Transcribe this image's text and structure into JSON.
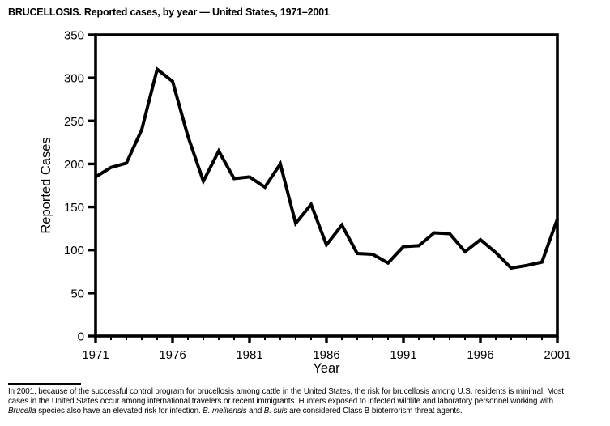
{
  "title": "BRUCELLOSIS. Reported cases, by year — United States, 1971–2001",
  "chart_data": {
    "type": "line",
    "title": "BRUCELLOSIS. Reported cases, by year — United States, 1971–2001",
    "xlabel": "Year",
    "ylabel": "Reported Cases",
    "xlim": [
      1971,
      2001
    ],
    "ylim": [
      0,
      350
    ],
    "yticks": [
      0,
      50,
      100,
      150,
      200,
      250,
      300,
      350
    ],
    "xticks_labeled": [
      1971,
      1976,
      1981,
      1986,
      1991,
      1996,
      2001
    ],
    "xtick_minor_every": 1,
    "grid": false,
    "legend": "none",
    "line_color": "#000000",
    "line_width": 4,
    "years": [
      1971,
      1972,
      1973,
      1974,
      1975,
      1976,
      1977,
      1978,
      1979,
      1980,
      1981,
      1982,
      1983,
      1984,
      1985,
      1986,
      1987,
      1988,
      1989,
      1990,
      1991,
      1992,
      1993,
      1994,
      1995,
      1996,
      1997,
      1998,
      1999,
      2000,
      2001
    ],
    "values": [
      185,
      196,
      201,
      240,
      310,
      296,
      232,
      180,
      215,
      183,
      185,
      173,
      200,
      131,
      153,
      106,
      129,
      96,
      95,
      85,
      104,
      105,
      120,
      119,
      98,
      112,
      97,
      79,
      82,
      86,
      136
    ]
  },
  "footnote": {
    "lines": [
      [
        {
          "t": "In 2001, because of the successful control program for brucellosis among cattle in the United States, the risk for brucellosis among U.S. residents is minimal. Most",
          "i": false
        }
      ],
      [
        {
          "t": "cases in the United States occur among international travelers or recent immigrants. Hunters exposed to infected wildlife and laboratory personnel working with",
          "i": false
        }
      ],
      [
        {
          "t": "Brucella",
          "i": true
        },
        {
          "t": " species also have an elevated risk for infection. ",
          "i": false
        },
        {
          "t": "B. melitensis",
          "i": true
        },
        {
          "t": " and ",
          "i": false
        },
        {
          "t": "B. suis",
          "i": true
        },
        {
          "t": " are considered Class B bioterrorism threat agents.",
          "i": false
        }
      ]
    ]
  }
}
